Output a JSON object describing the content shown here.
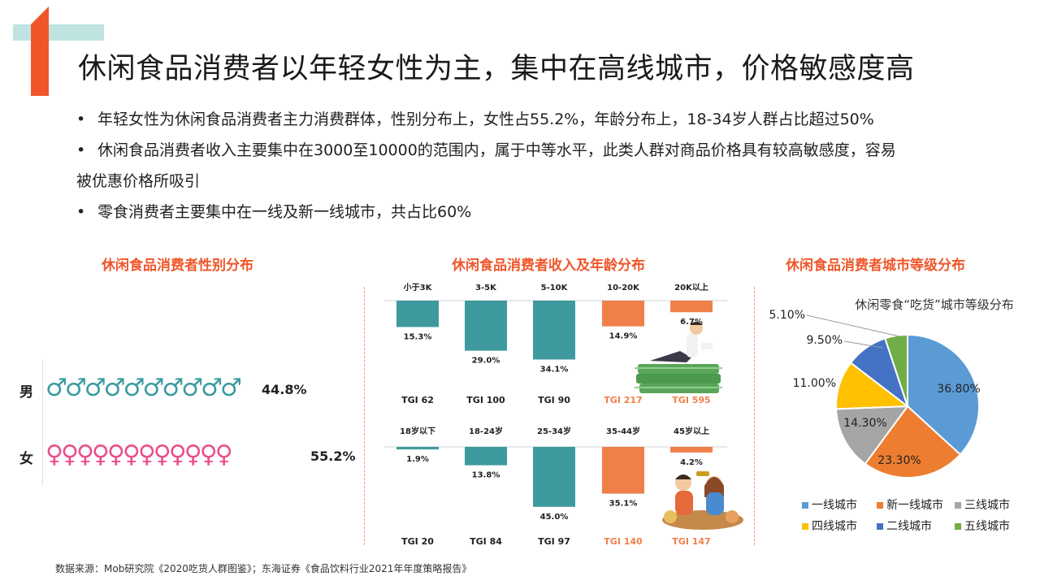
{
  "title": "休闲食品消费者以年轻女性为主，集中在高线城市，价格敏感度高",
  "bullets": [
    "年轻女性为休闲食品消费者主力消费群体，性别分布上，女性占55.2%，年龄分布上，18-34岁人群占比超过50%",
    "休闲食品消费者收入主要集中在3000至10000的范围内，属于中等水平，此类人群对商品价格具有较高敏感度，容易",
    "被优惠价格所吸引",
    "零食消费者主要集中在一线及新一线城市，共占比60%"
  ],
  "bullet_symbol": "•",
  "sections": {
    "gender_title": "休闲食品消费者性别分布",
    "income_age_title": "休闲食品消费者收入及年龄分布",
    "city_title": "休闲食品消费者城市等级分布"
  },
  "gender": {
    "male_label": "男",
    "male_value": "44.8%",
    "male_symbols": "♂♂♂♂♂♂♂♂♂♂",
    "female_label": "女",
    "female_value": "55.2%",
    "female_symbols": "♀♀♀♀♀♀♀♀♀♀♀♀",
    "male_color": "#3a9ba0",
    "female_color": "#e8508c"
  },
  "source": "数据来源：Mob研究院《2020吃货人群图鉴》；东海证券《食品饮料行业2021年年度策略报告》",
  "colors": {
    "teal": "#3e9a9e",
    "orange": "#f0804a",
    "accent": "#f0562a"
  },
  "chart_data": [
    {
      "type": "bar",
      "name": "income",
      "categories": [
        "小于3K",
        "3-5K",
        "5-10K",
        "10-20K",
        "20K以上"
      ],
      "values": [
        15.3,
        29.0,
        34.1,
        14.9,
        6.7
      ],
      "value_labels": [
        "15.3%",
        "29.0%",
        "34.1%",
        "14.9%",
        "6.7%"
      ],
      "tgi": [
        "TGI 62",
        "TGI 100",
        "TGI 90",
        "TGI 217",
        "TGI 595"
      ],
      "highlight": [
        false,
        false,
        false,
        true,
        true
      ],
      "ylim": [
        0,
        40
      ]
    },
    {
      "type": "bar",
      "name": "age",
      "categories": [
        "18岁以下",
        "18-24岁",
        "25-34岁",
        "35-44岁",
        "45岁以上"
      ],
      "values": [
        1.9,
        13.8,
        45.0,
        35.1,
        4.2
      ],
      "value_labels": [
        "1.9%",
        "13.8%",
        "45.0%",
        "35.1%",
        "4.2%"
      ],
      "tgi": [
        "TGI 20",
        "TGI 84",
        "TGI 97",
        "TGI 140",
        "TGI 147"
      ],
      "highlight": [
        false,
        false,
        false,
        true,
        true
      ],
      "ylim": [
        0,
        50
      ]
    },
    {
      "type": "pie",
      "title": "休闲零食“吃货”城市等级分布",
      "categories": [
        "一线城市",
        "新一线城市",
        "三线城市",
        "四线城市",
        "二线城市",
        "五线城市"
      ],
      "values": [
        36.8,
        23.3,
        14.3,
        11.0,
        9.5,
        5.1
      ],
      "value_labels": [
        "36.80%",
        "23.30%",
        "14.30%",
        "11.00%",
        "9.50%",
        "5.10%"
      ],
      "colors": [
        "#5b9bd5",
        "#ed7d31",
        "#a5a5a5",
        "#ffc000",
        "#4472c4",
        "#70ad47"
      ],
      "legend_position": "bottom"
    }
  ]
}
